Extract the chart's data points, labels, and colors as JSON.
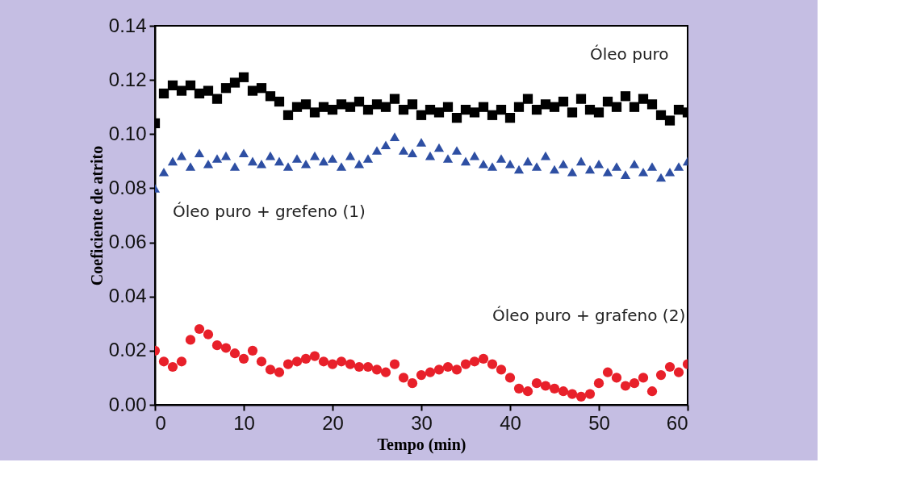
{
  "chart_data": {
    "type": "scatter",
    "xlabel": "Tempo (min)",
    "ylabel": "Coeficiente de atrito",
    "xlim": [
      0,
      60
    ],
    "xticks": [
      0,
      10,
      20,
      30,
      40,
      50,
      60
    ],
    "ylim": [
      0,
      0.14
    ],
    "yticks": [
      {
        "value": 0,
        "label": "0.00"
      },
      {
        "value": 0.02,
        "label": "0.02"
      },
      {
        "value": 0.04,
        "label": "0.04"
      },
      {
        "value": 0.06,
        "label": "0.06"
      },
      {
        "value": 0.08,
        "label": "0.08"
      },
      {
        "value": 0.1,
        "label": "0.10"
      },
      {
        "value": 0.12,
        "label": "0.12"
      },
      {
        "value": 0.14,
        "label": "0.14"
      }
    ],
    "grid": false,
    "x": [
      0,
      1,
      2,
      3,
      4,
      5,
      6,
      7,
      8,
      9,
      10,
      11,
      12,
      13,
      14,
      15,
      16,
      17,
      18,
      19,
      20,
      21,
      22,
      23,
      24,
      25,
      26,
      27,
      28,
      29,
      30,
      31,
      32,
      33,
      34,
      35,
      36,
      37,
      38,
      39,
      40,
      41,
      42,
      43,
      44,
      45,
      46,
      47,
      48,
      49,
      50,
      51,
      52,
      53,
      54,
      55,
      56,
      57,
      58,
      59,
      60
    ],
    "series": [
      {
        "name": "Óleo puro",
        "color": "#000000",
        "marker": "square",
        "values": [
          0.104,
          0.115,
          0.118,
          0.116,
          0.118,
          0.115,
          0.116,
          0.113,
          0.117,
          0.119,
          0.121,
          0.116,
          0.117,
          0.114,
          0.112,
          0.107,
          0.11,
          0.111,
          0.108,
          0.11,
          0.109,
          0.111,
          0.11,
          0.112,
          0.109,
          0.111,
          0.11,
          0.113,
          0.109,
          0.111,
          0.107,
          0.109,
          0.108,
          0.11,
          0.106,
          0.109,
          0.108,
          0.11,
          0.107,
          0.109,
          0.106,
          0.11,
          0.113,
          0.109,
          0.111,
          0.11,
          0.112,
          0.108,
          0.113,
          0.109,
          0.108,
          0.112,
          0.11,
          0.114,
          0.11,
          0.113,
          0.111,
          0.107,
          0.105,
          0.109,
          0.108
        ]
      },
      {
        "name": "Óleo puro + grefeno (1)",
        "color": "#2e4fa3",
        "marker": "triangle",
        "values": [
          0.08,
          0.086,
          0.09,
          0.092,
          0.088,
          0.093,
          0.089,
          0.091,
          0.092,
          0.088,
          0.093,
          0.09,
          0.089,
          0.092,
          0.09,
          0.088,
          0.091,
          0.089,
          0.092,
          0.09,
          0.091,
          0.088,
          0.092,
          0.089,
          0.091,
          0.094,
          0.096,
          0.099,
          0.094,
          0.093,
          0.097,
          0.092,
          0.095,
          0.091,
          0.094,
          0.09,
          0.092,
          0.089,
          0.088,
          0.091,
          0.089,
          0.087,
          0.09,
          0.088,
          0.092,
          0.087,
          0.089,
          0.086,
          0.09,
          0.087,
          0.089,
          0.086,
          0.088,
          0.085,
          0.089,
          0.086,
          0.088,
          0.084,
          0.086,
          0.088,
          0.09
        ]
      },
      {
        "name": "Óleo puro + grafeno (2)",
        "color": "#e8202a",
        "marker": "circle",
        "values": [
          0.02,
          0.016,
          0.014,
          0.016,
          0.024,
          0.028,
          0.026,
          0.022,
          0.021,
          0.019,
          0.017,
          0.02,
          0.016,
          0.013,
          0.012,
          0.015,
          0.016,
          0.017,
          0.018,
          0.016,
          0.015,
          0.016,
          0.015,
          0.014,
          0.014,
          0.013,
          0.012,
          0.015,
          0.01,
          0.008,
          0.011,
          0.012,
          0.013,
          0.014,
          0.013,
          0.015,
          0.016,
          0.017,
          0.015,
          0.013,
          0.01,
          0.006,
          0.005,
          0.008,
          0.007,
          0.006,
          0.005,
          0.004,
          0.003,
          0.004,
          0.008,
          0.012,
          0.01,
          0.007,
          0.008,
          0.01,
          0.005,
          0.011,
          0.014,
          0.012,
          0.015
        ]
      }
    ]
  }
}
